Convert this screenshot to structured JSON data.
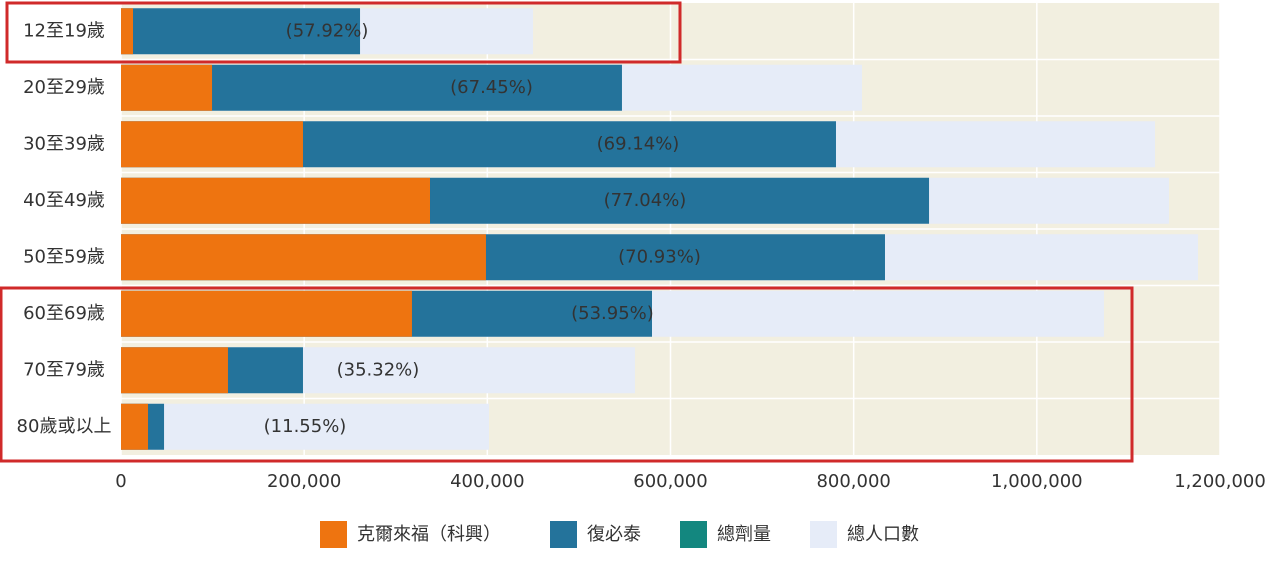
{
  "chart_data": {
    "type": "overlapping-bar",
    "categories": [
      "12至19歲",
      "20至29歲",
      "30至39歲",
      "40至49歲",
      "50至59歲",
      "60至69歲",
      "70至79歲",
      "80歲或以上"
    ],
    "series": [
      {
        "name": "總人口數",
        "color": "#e6ecf8",
        "values": [
          449900,
          809100,
          1129000,
          1144300,
          1176000,
          1073300,
          561200,
          401800
        ]
      },
      {
        "name": "復必泰",
        "color": "#24739b",
        "values": [
          261000,
          547000,
          780700,
          882300,
          834200,
          579800,
          198700,
          47000
        ]
      },
      {
        "name": "克爾來福（科興）",
        "color": "#ee7410",
        "values": [
          13100,
          99400,
          198700,
          337400,
          398500,
          317700,
          116800,
          29500
        ]
      },
      {
        "name": "總劑量",
        "color": "#13877f",
        "values": [
          null,
          null,
          null,
          null,
          null,
          null,
          null,
          null
        ]
      }
    ],
    "legend_order": [
      2,
      1,
      3,
      0
    ],
    "ratio_labels": [
      "(57.92%)",
      "(67.45%)",
      "(69.14%)",
      "(77.04%)",
      "(70.93%)",
      "(53.95%)",
      "(35.32%)",
      "(11.55%)"
    ],
    "xlim": [
      0,
      1200000
    ],
    "xticks": [
      0,
      {
        "value": 200000,
        "label": "200,000"
      },
      {
        "value": 400000,
        "label": "400,000"
      },
      {
        "value": 600000,
        "label": "600,000"
      },
      {
        "value": 800000,
        "label": "800,000"
      },
      {
        "value": 1000000,
        "label": "1,000,000"
      },
      {
        "value": 1200000,
        "label": "1,200,000"
      }
    ],
    "grid": true
  }
}
